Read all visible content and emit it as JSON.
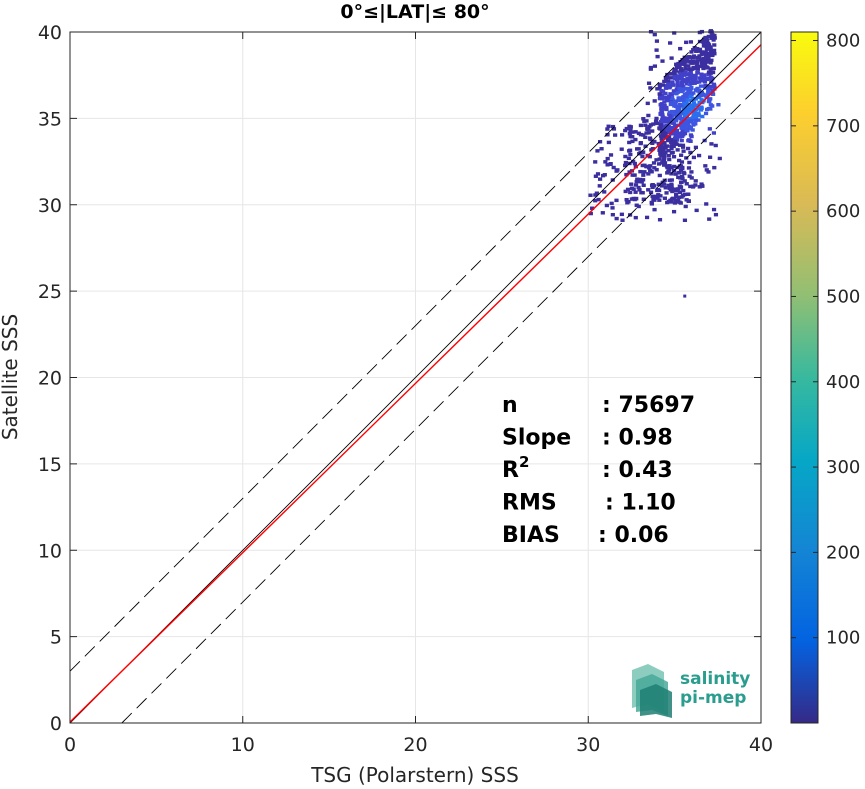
{
  "chart_data": {
    "type": "heatmap",
    "title": "0°≤|LAT|≤ 80°",
    "xlabel": "TSG (Polarstern) SSS",
    "ylabel": "Satellite SSS",
    "xlim": [
      0,
      40
    ],
    "ylim": [
      0,
      40
    ],
    "xticks": [
      0,
      10,
      20,
      30,
      40
    ],
    "yticks": [
      0,
      5,
      10,
      15,
      20,
      25,
      30,
      35,
      40
    ],
    "grid": true,
    "colorbar": {
      "colormap": "parula",
      "range": [
        0,
        810
      ],
      "ticks": [
        100,
        200,
        300,
        400,
        500,
        600,
        700,
        800
      ]
    },
    "lines": [
      {
        "role": "one-to-one",
        "style": "solid",
        "color": "#000000",
        "slope": 1.0,
        "intercept": 0.0
      },
      {
        "role": "regression",
        "style": "solid",
        "color": "#ff0000",
        "slope": 0.98,
        "intercept": 0.06
      },
      {
        "role": "upper-bound",
        "style": "dashed",
        "color": "#000000",
        "slope": 1.0,
        "intercept": 3.0
      },
      {
        "role": "lower-bound",
        "style": "dashed",
        "color": "#000000",
        "slope": 1.0,
        "intercept": -3.0
      }
    ],
    "density_summary": {
      "x_range": [
        30.0,
        37.5
      ],
      "y_range": [
        29.0,
        40.0
      ],
      "peak_x": 36,
      "peak_y": 35.5,
      "outlier": {
        "x": 35.5,
        "y": 24.8
      }
    },
    "stats": [
      {
        "label": "n",
        "value": ": 75697"
      },
      {
        "label": "Slope",
        "value": ": 0.98"
      },
      {
        "label": "R",
        "sup": "2",
        "value": ": 0.43"
      },
      {
        "label": "RMS",
        "value": ": 1.10"
      },
      {
        "label": "BIAS",
        "value": ": 0.06"
      }
    ]
  },
  "logo": {
    "line1": "salinity",
    "line2": "pi-mep"
  },
  "colors": {
    "regression": "#ff0000",
    "logo": "#2a9d8f"
  }
}
